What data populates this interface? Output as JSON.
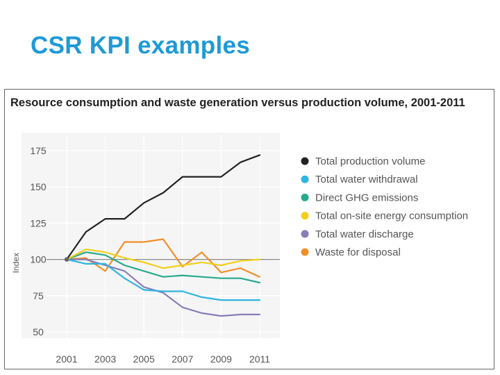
{
  "slide": {
    "title": "CSR KPI examples"
  },
  "colors": {
    "title": "#1e9ad6",
    "plot_background": "#f5f5f5",
    "grid": "#ffffff",
    "baseline": "#888888"
  },
  "chart_data": {
    "type": "line",
    "title": "Resource consumption and waste generation versus production volume, 2001-2011",
    "xlabel": "",
    "ylabel": "Index",
    "x": [
      2001,
      2002,
      2003,
      2004,
      2005,
      2006,
      2007,
      2008,
      2009,
      2010,
      2011
    ],
    "x_ticks": [
      "2001",
      "2003",
      "2005",
      "2007",
      "2009",
      "2011"
    ],
    "y_ticks": [
      "175",
      "150",
      "125",
      "100",
      "75",
      "50"
    ],
    "xlim": [
      2001,
      2011
    ],
    "ylim": [
      50,
      175
    ],
    "baseline": 100,
    "legend_position": "top-right",
    "series": [
      {
        "name": "Total production volume",
        "color": "#222222",
        "values": [
          100,
          119,
          128,
          128,
          139,
          146,
          157,
          157,
          157,
          167,
          172
        ]
      },
      {
        "name": "Total water withdrawal",
        "color": "#2eb5e0",
        "values": [
          100,
          97,
          97,
          87,
          79,
          78,
          78,
          74,
          72,
          72,
          72
        ]
      },
      {
        "name": "Direct GHG emissions",
        "color": "#27aa8e",
        "values": [
          100,
          105,
          103,
          96,
          92,
          88,
          89,
          88,
          87,
          87,
          84
        ]
      },
      {
        "name": "Total on-site energy consumption",
        "color": "#f2cf1c",
        "values": [
          100,
          107,
          105,
          101,
          98,
          94,
          96,
          98,
          96,
          99,
          100
        ]
      },
      {
        "name": "Total water discharge",
        "color": "#8a7cb8",
        "values": [
          100,
          100,
          96,
          92,
          81,
          77,
          67,
          63,
          61,
          62,
          62
        ]
      },
      {
        "name": "Waste for disposal",
        "color": "#ef8f2a",
        "values": [
          100,
          101,
          92,
          112,
          112,
          114,
          95,
          105,
          91,
          94,
          88
        ]
      }
    ]
  }
}
